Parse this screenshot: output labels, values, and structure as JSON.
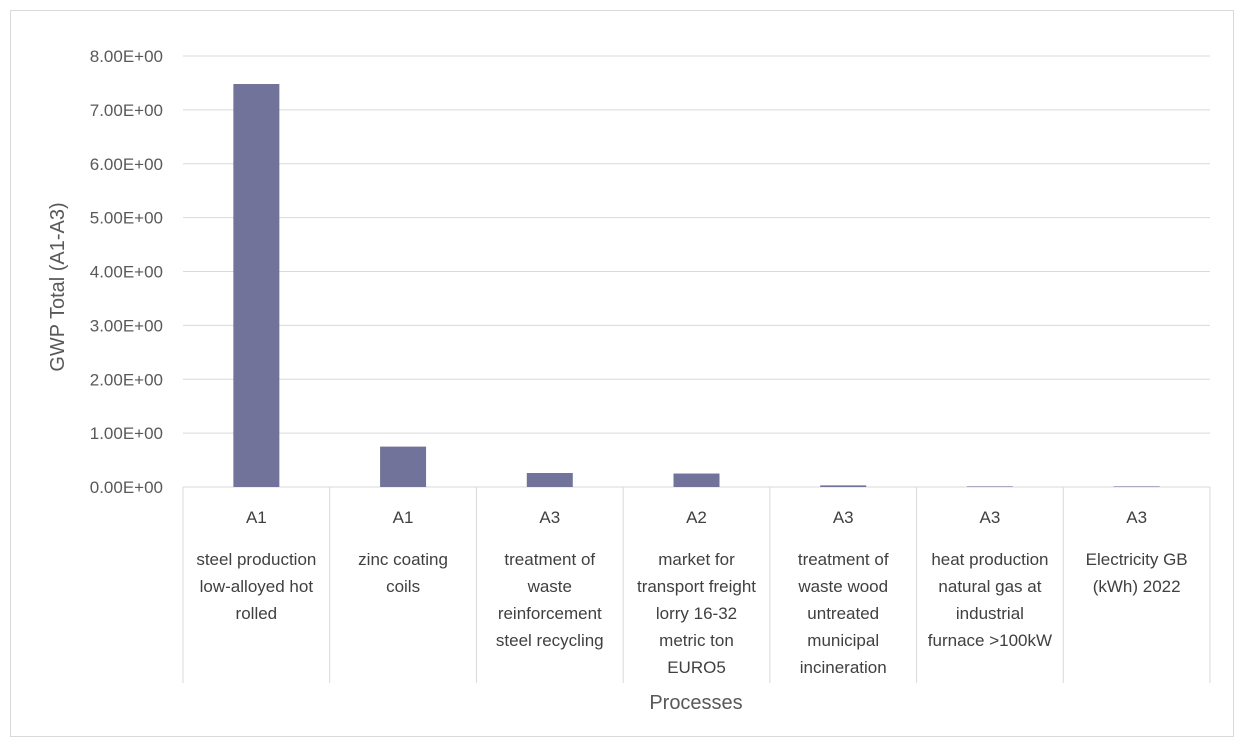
{
  "chart_data": {
    "type": "bar",
    "title": "",
    "xlabel": "Processes",
    "ylabel": "GWP Total (A1-A3)",
    "ylim": [
      0,
      8
    ],
    "y_ticks": [
      "0.00E+00",
      "1.00E+00",
      "2.00E+00",
      "3.00E+00",
      "4.00E+00",
      "5.00E+00",
      "6.00E+00",
      "7.00E+00",
      "8.00E+00"
    ],
    "grid": true,
    "legend": "none",
    "bar_color": "#72739a",
    "categories": [
      {
        "stage": "A1",
        "lines": [
          "steel production",
          "low-alloyed hot",
          "rolled"
        ]
      },
      {
        "stage": "A1",
        "lines": [
          "zinc coating",
          "coils"
        ]
      },
      {
        "stage": "A3",
        "lines": [
          "treatment of",
          "waste",
          "reinforcement",
          "steel recycling"
        ]
      },
      {
        "stage": "A2",
        "lines": [
          "market for",
          "transport freight",
          "lorry 16-32",
          "metric ton",
          "EURO5"
        ]
      },
      {
        "stage": "A3",
        "lines": [
          "treatment of",
          "waste wood",
          "untreated",
          "municipal",
          "incineration"
        ]
      },
      {
        "stage": "A3",
        "lines": [
          "heat production",
          "natural gas at",
          "industrial",
          "furnace >100kW"
        ]
      },
      {
        "stage": "A3",
        "lines": [
          "Electricity GB",
          "(kWh) 2022"
        ]
      }
    ],
    "values": [
      7.48,
      0.75,
      0.26,
      0.25,
      0.03,
      0.004,
      0.002
    ]
  }
}
